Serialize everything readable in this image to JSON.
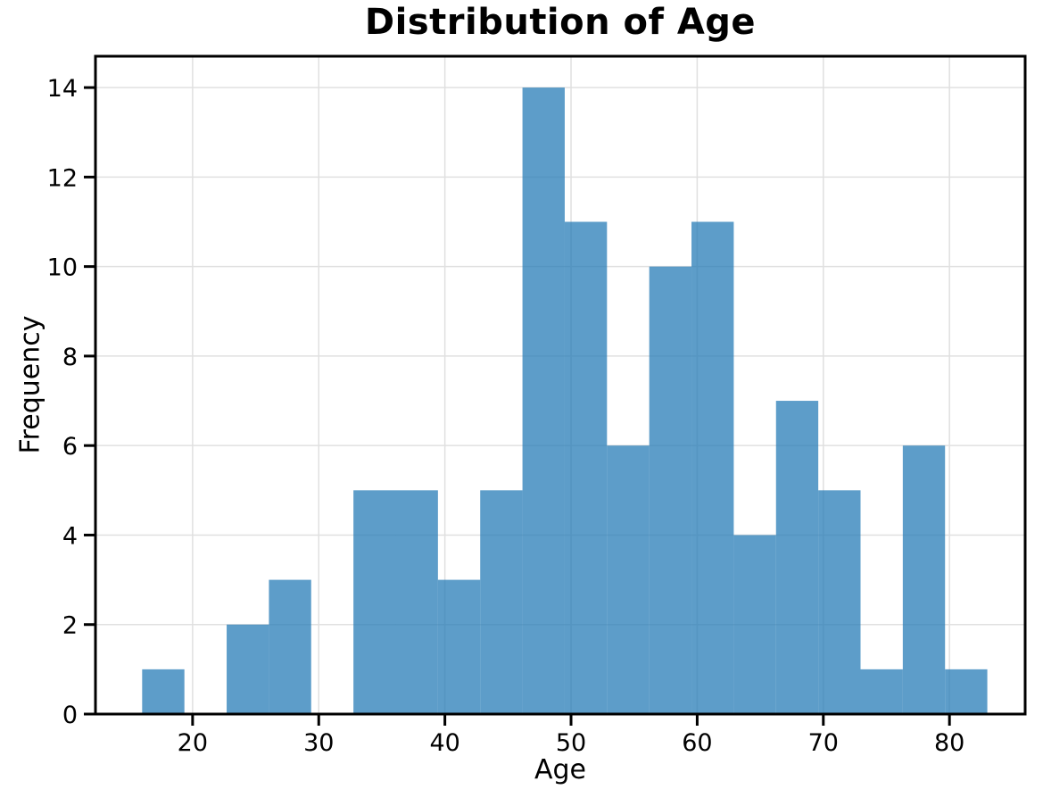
{
  "page": {
    "background_color": "#ffffff"
  },
  "chart_data": {
    "type": "bar",
    "subtype": "histogram",
    "title": "Distribution of Age",
    "xlabel": "Age",
    "ylabel": "Frequency",
    "bin_edges": [
      16,
      19.35,
      22.7,
      26.05,
      29.4,
      32.75,
      36.1,
      39.45,
      42.8,
      46.15,
      49.5,
      52.85,
      56.2,
      59.55,
      62.9,
      66.25,
      69.6,
      72.95,
      76.3,
      79.65,
      83
    ],
    "counts": [
      1,
      0,
      2,
      3,
      0,
      5,
      5,
      3,
      5,
      14,
      11,
      6,
      10,
      11,
      4,
      7,
      5,
      1,
      6,
      1
    ],
    "xticks": [
      20,
      30,
      40,
      50,
      60,
      70,
      80
    ],
    "yticks": [
      0,
      2,
      4,
      6,
      8,
      10,
      12,
      14
    ],
    "xlim": [
      12.3,
      86.0
    ],
    "ylim": [
      0,
      14.7
    ],
    "grid": true,
    "legend": false,
    "bar_color": "#1f77b4",
    "bar_alpha": 0.72,
    "grid_color": "#e0e0e0",
    "spine_color": "#000000",
    "tick_color": "#000000",
    "text_color": "#000000"
  }
}
